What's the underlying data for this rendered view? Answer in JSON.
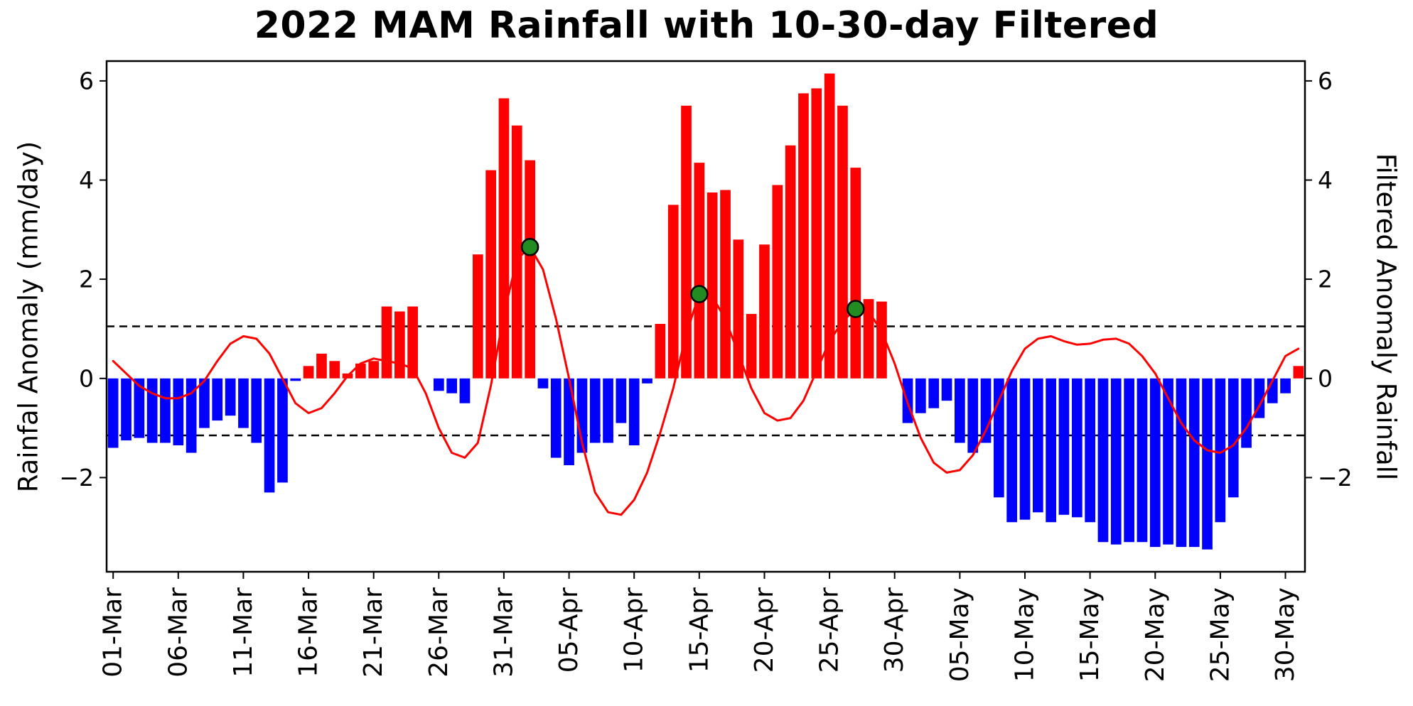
{
  "chart_data": {
    "type": "bar",
    "title": "2022 MAM Rainfall with 10-30-day Filtered",
    "ylabel_left": "Rainfal Anomaly (mm/day)",
    "ylabel_right": "Filtered Anomaly Rainfall",
    "ylim": [
      -3.9,
      6.4
    ],
    "y_ticks": [
      -2,
      0,
      2,
      4,
      6
    ],
    "x_tick_step": 5,
    "thresholds": [
      1.05,
      -1.15
    ],
    "grid": false,
    "legend": "none",
    "colors": {
      "positive_bar": "#ff0000",
      "negative_bar": "#0000ff",
      "line": "#ff0000",
      "dot": "#228B22",
      "dot_edge": "#000000",
      "threshold": "#000000",
      "axis": "#000000"
    },
    "dates": [
      "01-Mar",
      "02-Mar",
      "03-Mar",
      "04-Mar",
      "05-Mar",
      "06-Mar",
      "07-Mar",
      "08-Mar",
      "09-Mar",
      "10-Mar",
      "11-Mar",
      "12-Mar",
      "13-Mar",
      "14-Mar",
      "15-Mar",
      "16-Mar",
      "17-Mar",
      "18-Mar",
      "19-Mar",
      "20-Mar",
      "21-Mar",
      "22-Mar",
      "23-Mar",
      "24-Mar",
      "25-Mar",
      "26-Mar",
      "27-Mar",
      "28-Mar",
      "29-Mar",
      "30-Mar",
      "31-Mar",
      "01-Apr",
      "02-Apr",
      "03-Apr",
      "04-Apr",
      "05-Apr",
      "06-Apr",
      "07-Apr",
      "08-Apr",
      "09-Apr",
      "10-Apr",
      "11-Apr",
      "12-Apr",
      "13-Apr",
      "14-Apr",
      "15-Apr",
      "16-Apr",
      "17-Apr",
      "18-Apr",
      "19-Apr",
      "20-Apr",
      "21-Apr",
      "22-Apr",
      "23-Apr",
      "24-Apr",
      "25-Apr",
      "26-Apr",
      "27-Apr",
      "28-Apr",
      "29-Apr",
      "30-Apr",
      "01-May",
      "02-May",
      "03-May",
      "04-May",
      "05-May",
      "06-May",
      "07-May",
      "08-May",
      "09-May",
      "10-May",
      "11-May",
      "12-May",
      "13-May",
      "14-May",
      "15-May",
      "16-May",
      "17-May",
      "18-May",
      "19-May",
      "20-May",
      "21-May",
      "22-May",
      "23-May",
      "24-May",
      "25-May",
      "26-May",
      "27-May",
      "28-May",
      "29-May",
      "30-May",
      "31-May"
    ],
    "bar_values": [
      -1.4,
      -1.25,
      -1.2,
      -1.3,
      -1.3,
      -1.35,
      -1.5,
      -1.0,
      -0.85,
      -0.75,
      -1.0,
      -1.3,
      -2.3,
      -2.1,
      -0.05,
      0.25,
      0.5,
      0.35,
      0.1,
      0.3,
      0.35,
      1.45,
      1.35,
      1.45,
      0.0,
      -0.25,
      -0.3,
      -0.5,
      2.5,
      4.2,
      5.65,
      5.1,
      4.4,
      -0.2,
      -1.6,
      -1.75,
      -1.5,
      -1.3,
      -1.3,
      -0.9,
      -1.35,
      -0.1,
      1.1,
      3.5,
      5.5,
      4.35,
      3.75,
      3.8,
      2.8,
      1.3,
      2.7,
      3.9,
      4.7,
      5.75,
      5.85,
      6.15,
      5.5,
      4.25,
      1.6,
      1.55,
      0.0,
      -0.9,
      -0.7,
      -0.6,
      -0.45,
      -1.3,
      -1.5,
      -1.3,
      -2.4,
      -2.9,
      -2.85,
      -2.7,
      -2.9,
      -2.75,
      -2.8,
      -2.9,
      -3.3,
      -3.35,
      -3.3,
      -3.3,
      -3.4,
      -3.35,
      -3.4,
      -3.4,
      -3.45,
      -2.9,
      -2.4,
      -1.4,
      -0.8,
      -0.5,
      -0.3,
      0.25
    ],
    "line_values": [
      0.35,
      0.1,
      -0.15,
      -0.3,
      -0.4,
      -0.4,
      -0.3,
      -0.05,
      0.35,
      0.7,
      0.85,
      0.8,
      0.5,
      0.0,
      -0.5,
      -0.7,
      -0.6,
      -0.3,
      0.05,
      0.3,
      0.4,
      0.35,
      0.3,
      0.2,
      -0.3,
      -1.0,
      -1.5,
      -1.6,
      -1.3,
      -0.15,
      1.3,
      2.4,
      2.65,
      2.2,
      1.2,
      0.0,
      -1.3,
      -2.3,
      -2.7,
      -2.75,
      -2.45,
      -1.9,
      -1.1,
      -0.2,
      0.9,
      1.7,
      1.65,
      1.2,
      0.5,
      -0.2,
      -0.7,
      -0.85,
      -0.8,
      -0.45,
      0.15,
      0.75,
      1.15,
      1.4,
      1.35,
      0.95,
      0.3,
      -0.5,
      -1.2,
      -1.7,
      -1.9,
      -1.85,
      -1.55,
      -1.05,
      -0.45,
      0.15,
      0.6,
      0.8,
      0.85,
      0.75,
      0.68,
      0.7,
      0.78,
      0.8,
      0.7,
      0.45,
      0.1,
      -0.4,
      -0.9,
      -1.25,
      -1.45,
      -1.5,
      -1.35,
      -1.0,
      -0.55,
      -0.05,
      0.45,
      0.6
    ],
    "dots": [
      {
        "date": "02-Apr",
        "value": 2.65
      },
      {
        "date": "15-Apr",
        "value": 1.7
      },
      {
        "date": "27-Apr",
        "value": 1.4
      }
    ]
  }
}
